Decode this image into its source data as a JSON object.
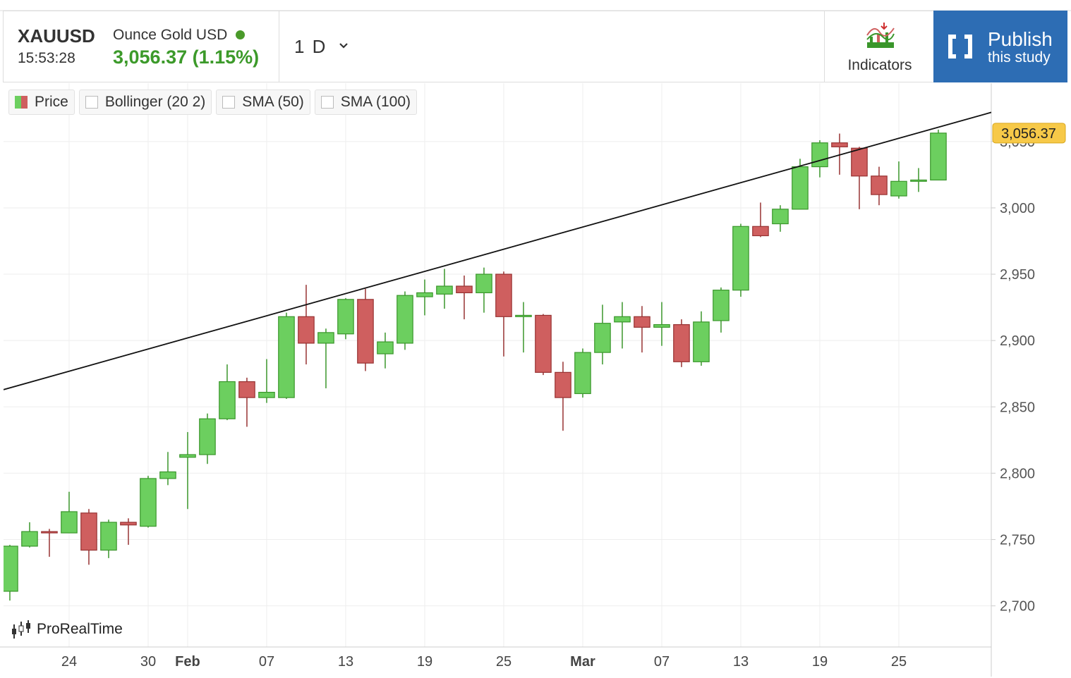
{
  "header": {
    "symbol": "XAUUSD",
    "name": "Ounce Gold USD",
    "time": "15:53:28",
    "price": "3,056.37 (1.15%)",
    "interval": "1 D",
    "indicators": "Indicators",
    "publish": "Publish",
    "publish_sub": "this study",
    "watermark": "ProRealTime"
  },
  "legend": [
    "Price",
    "Bollinger (20 2)",
    "SMA (50)",
    "SMA (100)"
  ],
  "chart_data": {
    "type": "candlestick",
    "categories": [
      null,
      null,
      null,
      "24",
      null,
      null,
      null,
      "30",
      null,
      "Feb",
      null,
      null,
      null,
      "07",
      null,
      null,
      null,
      "13",
      null,
      null,
      null,
      "19",
      null,
      null,
      null,
      "25",
      null,
      null,
      null,
      "Mar",
      null,
      null,
      null,
      "07",
      null,
      null,
      null,
      "13",
      null,
      null,
      null,
      "19",
      null,
      null,
      null,
      "25",
      null,
      null
    ],
    "open": [
      2711,
      2745,
      2756,
      2755,
      2770,
      2742,
      2763,
      2760,
      2796,
      2812,
      2814,
      2841,
      2869,
      2857,
      2857,
      2918,
      2898,
      2905,
      2931,
      2890,
      2898,
      2933,
      2935,
      2941,
      2936,
      2950,
      2918,
      2919,
      2876,
      2860,
      2891,
      2914,
      2918,
      2910,
      2912,
      2884,
      2915,
      2938,
      2986,
      2988,
      2999,
      3031,
      3049,
      3045,
      3024,
      3009,
      3020,
      3021
    ],
    "high": [
      2746,
      2763,
      2758,
      2786,
      2773,
      2765,
      2766,
      2798,
      2816,
      2831,
      2845,
      2882,
      2872,
      2886,
      2921,
      2942,
      2909,
      2932,
      2939,
      2906,
      2937,
      2946,
      2954,
      2949,
      2955,
      2952,
      2929,
      2920,
      2884,
      2894,
      2927,
      2929,
      2926,
      2929,
      2916,
      2922,
      2940,
      2988,
      3004,
      3002,
      3037,
      3051,
      3056,
      3046,
      3031,
      3035,
      3030,
      3059
    ],
    "low": [
      2704,
      2744,
      2737,
      2755,
      2731,
      2736,
      2746,
      2759,
      2791,
      2773,
      2807,
      2840,
      2835,
      2853,
      2856,
      2882,
      2864,
      2901,
      2877,
      2879,
      2893,
      2919,
      2924,
      2916,
      2921,
      2888,
      2891,
      2874,
      2832,
      2857,
      2882,
      2894,
      2891,
      2896,
      2880,
      2881,
      2906,
      2933,
      2978,
      2982,
      2999,
      3023,
      3025,
      2999,
      3002,
      3007,
      3012,
      3021
    ],
    "close": [
      2745,
      2756,
      2755,
      2771,
      2742,
      2763,
      2761,
      2796,
      2801,
      2814,
      2841,
      2869,
      2857,
      2861,
      2918,
      2898,
      2906,
      2931,
      2883,
      2899,
      2934,
      2936,
      2941,
      2936,
      2950,
      2918,
      2919,
      2876,
      2857,
      2891,
      2913,
      2918,
      2910,
      2912,
      2884,
      2914,
      2938,
      2986,
      2979,
      2999,
      3031,
      3049,
      3046,
      3024,
      3010,
      3020,
      3021,
      3056.37
    ],
    "up_color": "#6ccf5f",
    "up_edge": "#3a962b",
    "down_color": "#cf5f5f",
    "down_edge": "#973232",
    "xlim": [
      -0.32,
      49.68
    ],
    "ylim": [
      2669,
      3094
    ],
    "yticks": [
      {
        "value": 2700,
        "label": "2,700"
      },
      {
        "value": 2750,
        "label": "2,750"
      },
      {
        "value": 2800,
        "label": "2,800"
      },
      {
        "value": 2850,
        "label": "2,850"
      },
      {
        "value": 2900,
        "label": "2,900"
      },
      {
        "value": 2950,
        "label": "2,950"
      },
      {
        "value": 3000,
        "label": "3,000"
      },
      {
        "value": 3050,
        "label": "3,050"
      }
    ],
    "grid": true,
    "last_price": {
      "value": 3056.37,
      "label": "3,056.37"
    },
    "trendline": {
      "x": [
        -0.32,
        49.68
      ],
      "y": [
        2863,
        3072
      ]
    }
  }
}
